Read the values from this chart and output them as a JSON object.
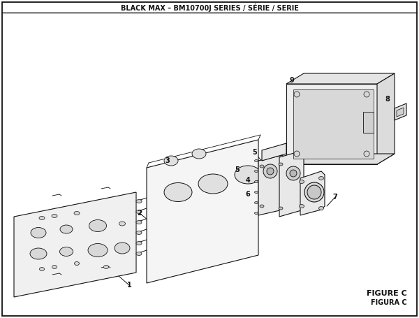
{
  "title": "BLACK MAX – BM10700J SERIES / SÉRIE / SERIE",
  "figure_label_1": "FIGURE C",
  "figure_label_2": "FIGURA C",
  "bg_color": "#ffffff",
  "border_color": "#111111",
  "line_color": "#111111"
}
